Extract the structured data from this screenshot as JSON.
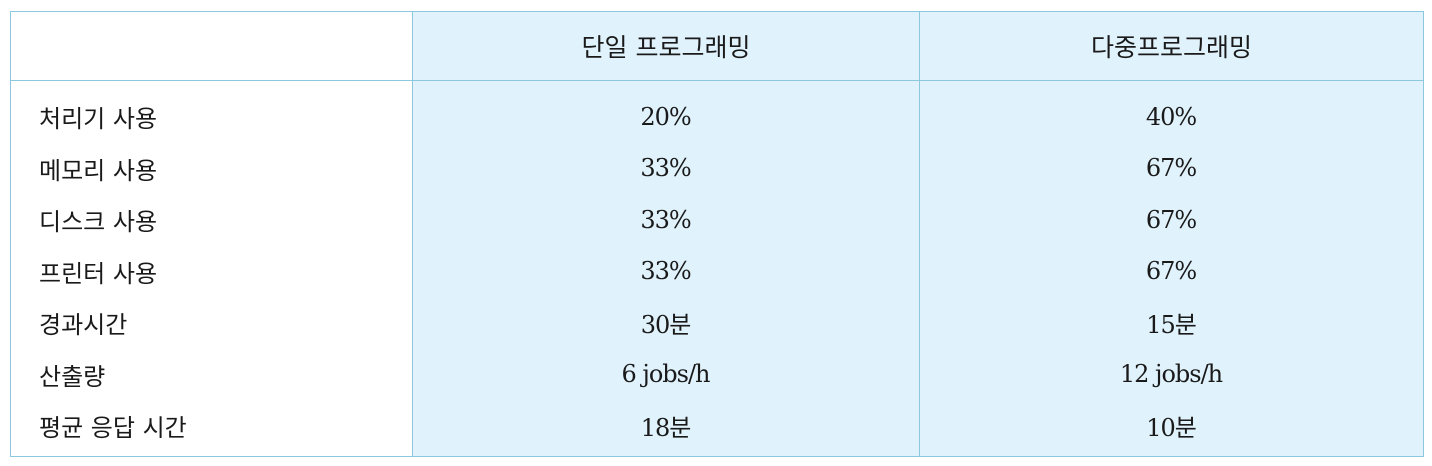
{
  "table": {
    "header": {
      "label": "",
      "single": "단일 프로그래밍",
      "multi": "다중프로그래밍"
    },
    "rows": [
      {
        "label": "처리기 사용",
        "single": "20%",
        "multi": "40%"
      },
      {
        "label": "메모리 사용",
        "single": "33%",
        "multi": "67%"
      },
      {
        "label": "디스크 사용",
        "single": "33%",
        "multi": "67%"
      },
      {
        "label": "프린터 사용",
        "single": "33%",
        "multi": "67%"
      },
      {
        "label": "경과시간",
        "single": "30분",
        "multi": "15분"
      },
      {
        "label": "산출량",
        "single": "6 jobs/h",
        "multi": "12 jobs/h"
      },
      {
        "label": "평균 응답 시간",
        "single": "18분",
        "multi": "10분"
      }
    ]
  },
  "colors": {
    "border": "#8cc8e0",
    "shaded_fill": "#e0f2fc",
    "text": "#1a1a1a"
  }
}
